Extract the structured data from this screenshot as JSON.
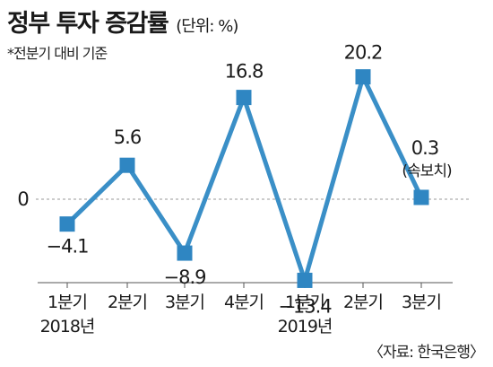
{
  "header": {
    "title": "정부 투자 증감률",
    "unit": "(단위: %)",
    "subtitle": "*전분기 대비 기준"
  },
  "source": "〈자료: 한국은행〉",
  "colors": {
    "line": "#3a8fc7",
    "marker": "#2f86c2",
    "axis": "#555555",
    "zero_line": "#999999"
  },
  "chart_data": {
    "type": "line",
    "categories": [
      "1분기",
      "2분기",
      "3분기",
      "4분기",
      "1분기",
      "2분기",
      "3분기"
    ],
    "year_labels": [
      "2018년",
      "",
      "",
      "",
      "2019년",
      "",
      ""
    ],
    "series": [
      {
        "values": [
          -4.1,
          5.6,
          -8.9,
          16.8,
          -13.4,
          20.2,
          0.3
        ]
      }
    ],
    "value_labels": [
      "−4.1",
      "5.6",
      "−8.9",
      "16.8",
      "−13.4",
      "20.2",
      "0.3"
    ],
    "annotations": [
      {
        "index": 6,
        "text": "(속보치)"
      }
    ],
    "zero_label": "0",
    "ylim": [
      -16,
      24
    ],
    "reference_line": 0,
    "grid": false,
    "marker": "square"
  }
}
